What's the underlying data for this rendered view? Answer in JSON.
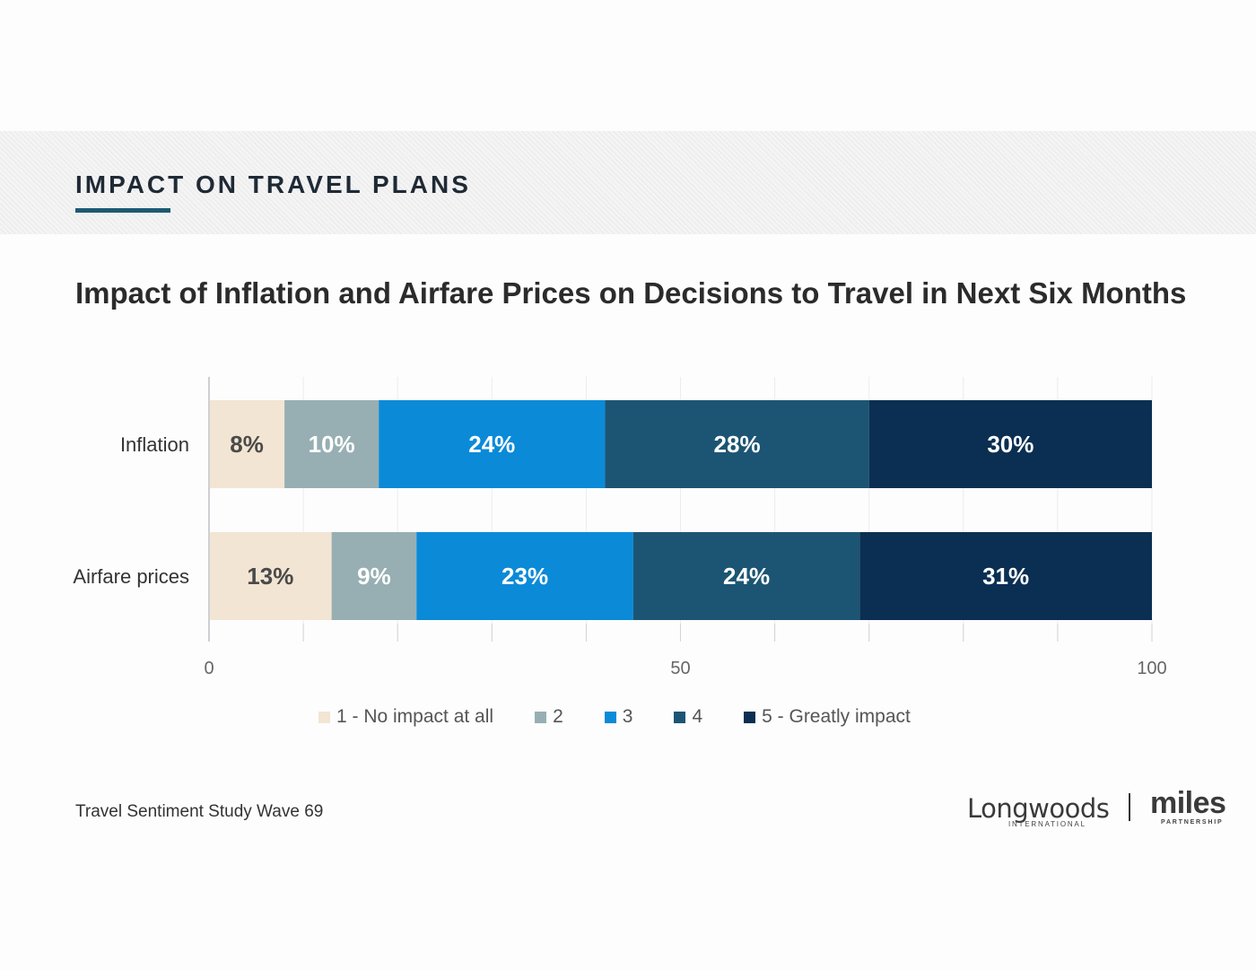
{
  "section": {
    "title": "IMPACT ON TRAVEL PLANS"
  },
  "footer": {
    "source": "Travel Sentiment Study Wave 69"
  },
  "logos": {
    "longwoods_word": "Longwoods",
    "longwoods_sub": "INTERNATIONAL",
    "miles_word": "miles",
    "miles_sub": "PARTNERSHIP"
  },
  "chart_data": {
    "type": "bar",
    "orientation": "horizontal",
    "stacked": true,
    "title": "Impact of Inflation and Airfare Prices on Decisions to Travel in Next Six Months",
    "categories": [
      "Inflation",
      "Airfare prices"
    ],
    "xlim": [
      0,
      100
    ],
    "x_ticks": [
      0,
      50,
      100
    ],
    "grid": true,
    "legend_position": "bottom",
    "series": [
      {
        "name": "1 - No impact at all",
        "values": [
          8,
          13
        ],
        "color": "#f2e5d3",
        "label_color": "#4a4a4a"
      },
      {
        "name": "2",
        "values": [
          10,
          9
        ],
        "color": "#97afb3",
        "label_color": "#ffffff"
      },
      {
        "name": "3",
        "values": [
          24,
          23
        ],
        "color": "#0b8ad8",
        "label_color": "#ffffff"
      },
      {
        "name": "4",
        "values": [
          28,
          24
        ],
        "color": "#1c5573",
        "label_color": "#ffffff"
      },
      {
        "name": "5 - Greatly impact",
        "values": [
          30,
          31
        ],
        "color": "#0a2f52",
        "label_color": "#ffffff"
      }
    ]
  }
}
